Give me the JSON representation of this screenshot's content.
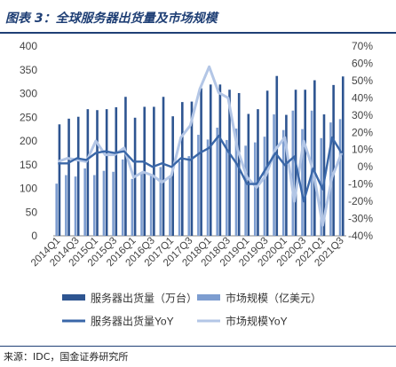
{
  "header": {
    "title": "图表 3：全球服务器出货量及市场规模"
  },
  "footer": {
    "source": "来源：IDC，国金证券研究所"
  },
  "colors": {
    "title": "#1f3f75",
    "shipment_bar": "#2e5591",
    "market_bar": "#7d9dd0",
    "shipment_line": "#3a67a8",
    "market_line": "#b3c6e6",
    "axis": "#666666"
  },
  "chart_data": {
    "type": "bar",
    "quarters": [
      "2014Q1",
      "2014Q2",
      "2014Q3",
      "2014Q4",
      "2015Q1",
      "2015Q2",
      "2015Q3",
      "2015Q4",
      "2016Q1",
      "2016Q2",
      "2016Q3",
      "2016Q4",
      "2017Q1",
      "2017Q2",
      "2017Q3",
      "2017Q4",
      "2018Q1",
      "2018Q2",
      "2018Q3",
      "2018Q4",
      "2019Q1",
      "2019Q2",
      "2019Q3",
      "2019Q4",
      "2020Q1",
      "2020Q2",
      "2020Q3",
      "2020Q4",
      "2021Q1",
      "2021Q2",
      "2021Q3"
    ],
    "x_tick_labels": [
      "2014Q1",
      "2014Q3",
      "2015Q1",
      "2015Q3",
      "2016Q1",
      "2016Q3",
      "2017Q1",
      "2017Q3",
      "2018Q1",
      "2018Q3",
      "2019Q1",
      "2019Q3",
      "2020Q1",
      "2020Q3",
      "2021Q1",
      "2021Q3"
    ],
    "left_axis": {
      "min": 0,
      "max": 400,
      "ticks": [
        "0",
        "50",
        "100",
        "150",
        "200",
        "250",
        "300",
        "350",
        "400"
      ]
    },
    "right_axis": {
      "min": -40,
      "max": 70,
      "ticks": [
        "-40%",
        "-30%",
        "-20%",
        "-10%",
        "0%",
        "10%",
        "20%",
        "30%",
        "40%",
        "50%",
        "60%",
        "70%"
      ]
    },
    "series": [
      {
        "name": "服务器出货量（万台）",
        "kind": "bar",
        "axis": "left",
        "values": [
          235,
          247,
          251,
          267,
          265,
          267,
          271,
          293,
          249,
          272,
          272,
          293,
          252,
          282,
          283,
          311,
          319,
          319,
          308,
          301,
          257,
          267,
          306,
          337,
          255,
          308,
          308,
          328,
          256,
          318,
          336
        ]
      },
      {
        "name": "市场规模（亿美元）",
        "kind": "bar",
        "axis": "left",
        "values": [
          110,
          128,
          125,
          142,
          128,
          137,
          135,
          161,
          120,
          133,
          129,
          145,
          127,
          157,
          168,
          213,
          203,
          228,
          202,
          226,
          190,
          197,
          209,
          256,
          223,
          264,
          225,
          264,
          206,
          239,
          246
        ]
      },
      {
        "name": "服务器出货量YoY",
        "kind": "line",
        "axis": "right",
        "values": [
          2,
          2,
          5,
          4,
          8,
          9,
          8,
          9,
          3,
          3,
          0,
          2,
          0,
          5,
          4,
          8,
          11,
          18,
          9,
          1,
          -10,
          -10,
          -1,
          8,
          1,
          6,
          -20,
          -1,
          -13,
          17,
          8
        ]
      },
      {
        "name": "市场规模YoY",
        "kind": "line",
        "axis": "right",
        "values": [
          3,
          5,
          4,
          3,
          15,
          7,
          7,
          11,
          -6,
          -3,
          -5,
          -9,
          -5,
          17,
          24,
          45,
          58,
          43,
          40,
          10,
          -6,
          -12,
          -5,
          10,
          17,
          -20,
          15,
          -2,
          -34,
          -6,
          8
        ]
      }
    ],
    "legend_position": "bottom",
    "grid": false
  }
}
